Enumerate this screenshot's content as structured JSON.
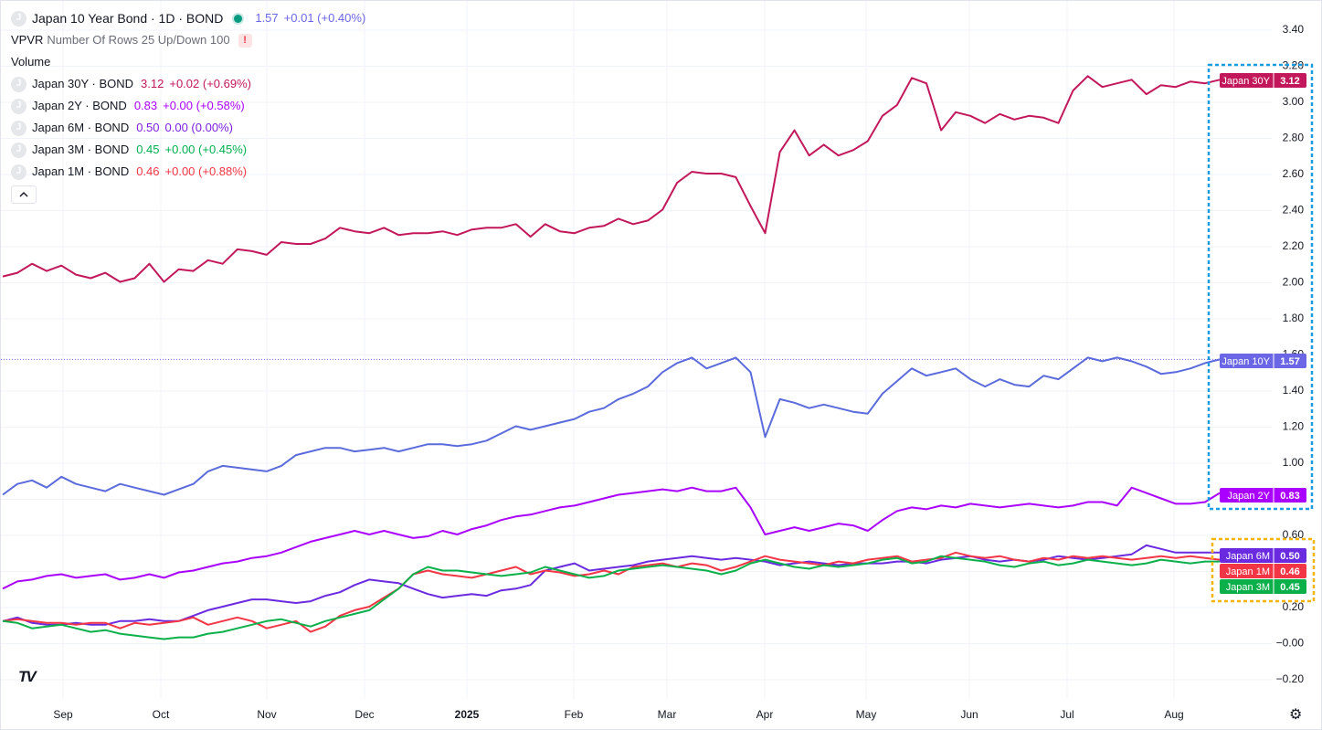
{
  "legend": {
    "main": {
      "title": "Japan 10 Year Bond · 1D · BOND",
      "value": "1.57",
      "change": "+0.01 (+0.40%)",
      "color": "#6b66e6"
    },
    "vpvr": {
      "label": "VPVR",
      "params": "Number Of Rows 25 Up/Down 100",
      "alert": "!"
    },
    "volume": "Volume",
    "items": [
      {
        "name": "Japan 30Y · BOND",
        "value": "3.12",
        "change": "+0.02 (+0.69%)",
        "color": "#c2185b"
      },
      {
        "name": "Japan 2Y · BOND",
        "value": "0.83",
        "change": "+0.00 (+0.58%)",
        "color": "#aa00ff"
      },
      {
        "name": "Japan 6M · BOND",
        "value": "0.50",
        "change": "0.00 (0.00%)",
        "color": "#7b1fe0"
      },
      {
        "name": "Japan 3M · BOND",
        "value": "0.45",
        "change": "+0.00 (+0.45%)",
        "color": "#00b050"
      },
      {
        "name": "Japan 1M · BOND",
        "value": "0.46",
        "change": "+0.00 (+0.88%)",
        "color": "#f23645"
      }
    ],
    "symbol_letter": "J",
    "collapse_icon": "chevron-up-icon"
  },
  "logo_text": "TV",
  "settings_icon": "gear-icon",
  "chart_data": {
    "type": "line",
    "x_labels": [
      "Sep",
      "Oct",
      "Nov",
      "Dec",
      "2025",
      "Feb",
      "Mar",
      "Apr",
      "May",
      "Jun",
      "Jul",
      "Aug"
    ],
    "y_ticks": [
      "3.40",
      "3.20",
      "3.00",
      "2.80",
      "2.60",
      "2.40",
      "2.20",
      "2.00",
      "1.80",
      "1.60",
      "1.40",
      "1.20",
      "1.00",
      "0.80",
      "0.60",
      "0.40",
      "0.20",
      "−0.00",
      "−0.20"
    ],
    "ylim": [
      -0.25,
      3.45
    ],
    "series": [
      {
        "name": "Japan 30Y",
        "color": "#c2185b",
        "last": "3.12",
        "label_color": "#c2185b",
        "values": [
          2.03,
          2.05,
          2.1,
          2.06,
          2.09,
          2.04,
          2.02,
          2.05,
          2.0,
          2.02,
          2.1,
          2.0,
          2.07,
          2.06,
          2.12,
          2.1,
          2.18,
          2.17,
          2.15,
          2.22,
          2.21,
          2.21,
          2.24,
          2.3,
          2.28,
          2.27,
          2.3,
          2.26,
          2.27,
          2.27,
          2.28,
          2.26,
          2.29,
          2.3,
          2.3,
          2.32,
          2.25,
          2.32,
          2.28,
          2.27,
          2.3,
          2.31,
          2.35,
          2.32,
          2.34,
          2.4,
          2.55,
          2.61,
          2.6,
          2.6,
          2.58,
          2.42,
          2.27,
          2.72,
          2.84,
          2.7,
          2.76,
          2.7,
          2.73,
          2.78,
          2.92,
          2.98,
          3.13,
          3.1,
          2.84,
          2.94,
          2.92,
          2.88,
          2.93,
          2.9,
          2.92,
          2.91,
          2.88,
          3.06,
          3.14,
          3.08,
          3.1,
          3.12,
          3.04,
          3.09,
          3.08,
          3.11,
          3.1,
          3.12
        ]
      },
      {
        "name": "Japan 10Y",
        "color": "#5b6bdc",
        "last": "1.57",
        "label_color": "#6b66e6",
        "values": [
          0.82,
          0.88,
          0.9,
          0.86,
          0.92,
          0.88,
          0.86,
          0.84,
          0.88,
          0.86,
          0.84,
          0.82,
          0.85,
          0.88,
          0.95,
          0.98,
          0.97,
          0.96,
          0.95,
          0.98,
          1.04,
          1.06,
          1.08,
          1.08,
          1.06,
          1.07,
          1.08,
          1.06,
          1.08,
          1.1,
          1.1,
          1.09,
          1.1,
          1.12,
          1.16,
          1.2,
          1.18,
          1.2,
          1.22,
          1.24,
          1.28,
          1.3,
          1.35,
          1.38,
          1.42,
          1.5,
          1.55,
          1.58,
          1.52,
          1.55,
          1.58,
          1.5,
          1.14,
          1.35,
          1.33,
          1.3,
          1.32,
          1.3,
          1.28,
          1.27,
          1.38,
          1.45,
          1.52,
          1.48,
          1.5,
          1.52,
          1.46,
          1.42,
          1.46,
          1.43,
          1.42,
          1.48,
          1.46,
          1.52,
          1.58,
          1.56,
          1.58,
          1.56,
          1.53,
          1.49,
          1.5,
          1.52,
          1.55,
          1.57
        ]
      },
      {
        "name": "Japan 2Y",
        "color": "#aa00ff",
        "last": "0.83",
        "label_color": "#aa00ff",
        "values": [
          0.3,
          0.34,
          0.35,
          0.37,
          0.38,
          0.36,
          0.37,
          0.38,
          0.35,
          0.36,
          0.38,
          0.36,
          0.39,
          0.4,
          0.42,
          0.44,
          0.45,
          0.47,
          0.48,
          0.5,
          0.53,
          0.56,
          0.58,
          0.6,
          0.62,
          0.6,
          0.62,
          0.6,
          0.58,
          0.59,
          0.62,
          0.6,
          0.63,
          0.65,
          0.68,
          0.7,
          0.71,
          0.73,
          0.75,
          0.76,
          0.78,
          0.8,
          0.82,
          0.83,
          0.84,
          0.85,
          0.84,
          0.86,
          0.84,
          0.84,
          0.86,
          0.75,
          0.6,
          0.62,
          0.64,
          0.62,
          0.64,
          0.66,
          0.65,
          0.62,
          0.68,
          0.73,
          0.75,
          0.74,
          0.76,
          0.75,
          0.77,
          0.76,
          0.75,
          0.76,
          0.77,
          0.76,
          0.75,
          0.76,
          0.78,
          0.78,
          0.76,
          0.86,
          0.83,
          0.8,
          0.77,
          0.77,
          0.78,
          0.83
        ]
      },
      {
        "name": "Japan 6M",
        "color": "#6a2be0",
        "last": "0.50",
        "label_color": "#6a2be0",
        "values": [
          0.12,
          0.14,
          0.11,
          0.1,
          0.1,
          0.11,
          0.1,
          0.1,
          0.12,
          0.12,
          0.13,
          0.12,
          0.12,
          0.15,
          0.18,
          0.2,
          0.22,
          0.24,
          0.24,
          0.23,
          0.22,
          0.23,
          0.26,
          0.28,
          0.32,
          0.35,
          0.34,
          0.33,
          0.3,
          0.27,
          0.25,
          0.26,
          0.27,
          0.26,
          0.29,
          0.3,
          0.32,
          0.4,
          0.42,
          0.44,
          0.4,
          0.41,
          0.42,
          0.43,
          0.45,
          0.46,
          0.47,
          0.48,
          0.47,
          0.46,
          0.47,
          0.46,
          0.45,
          0.43,
          0.44,
          0.45,
          0.44,
          0.43,
          0.44,
          0.44,
          0.44,
          0.45,
          0.45,
          0.44,
          0.46,
          0.47,
          0.48,
          0.46,
          0.45,
          0.46,
          0.45,
          0.46,
          0.48,
          0.47,
          0.46,
          0.47,
          0.48,
          0.49,
          0.54,
          0.52,
          0.5,
          0.5,
          0.5,
          0.5
        ]
      },
      {
        "name": "Japan 1M",
        "color": "#f23645",
        "last": "0.46",
        "label_color": "#f23645",
        "values": [
          0.12,
          0.13,
          0.12,
          0.11,
          0.11,
          0.1,
          0.11,
          0.11,
          0.08,
          0.11,
          0.1,
          0.11,
          0.12,
          0.14,
          0.1,
          0.12,
          0.14,
          0.12,
          0.08,
          0.1,
          0.12,
          0.06,
          0.09,
          0.15,
          0.18,
          0.2,
          0.25,
          0.3,
          0.38,
          0.4,
          0.38,
          0.37,
          0.36,
          0.38,
          0.4,
          0.42,
          0.38,
          0.4,
          0.39,
          0.37,
          0.38,
          0.4,
          0.38,
          0.42,
          0.43,
          0.44,
          0.42,
          0.44,
          0.43,
          0.4,
          0.42,
          0.45,
          0.48,
          0.46,
          0.45,
          0.44,
          0.43,
          0.45,
          0.44,
          0.46,
          0.47,
          0.48,
          0.45,
          0.46,
          0.47,
          0.5,
          0.48,
          0.47,
          0.48,
          0.46,
          0.45,
          0.47,
          0.46,
          0.48,
          0.47,
          0.48,
          0.47,
          0.46,
          0.47,
          0.48,
          0.47,
          0.48,
          0.47,
          0.46
        ]
      },
      {
        "name": "Japan 3M",
        "color": "#0bb04b",
        "last": "0.45",
        "label_color": "#0bb04b",
        "values": [
          0.12,
          0.11,
          0.08,
          0.09,
          0.1,
          0.08,
          0.06,
          0.07,
          0.05,
          0.04,
          0.03,
          0.02,
          0.03,
          0.03,
          0.05,
          0.06,
          0.08,
          0.1,
          0.12,
          0.13,
          0.11,
          0.09,
          0.12,
          0.14,
          0.16,
          0.18,
          0.24,
          0.3,
          0.38,
          0.42,
          0.4,
          0.4,
          0.39,
          0.38,
          0.37,
          0.38,
          0.39,
          0.42,
          0.4,
          0.38,
          0.36,
          0.37,
          0.4,
          0.41,
          0.42,
          0.43,
          0.42,
          0.41,
          0.4,
          0.38,
          0.4,
          0.44,
          0.46,
          0.44,
          0.42,
          0.41,
          0.43,
          0.42,
          0.43,
          0.44,
          0.46,
          0.47,
          0.44,
          0.45,
          0.48,
          0.47,
          0.46,
          0.45,
          0.43,
          0.42,
          0.44,
          0.45,
          0.43,
          0.44,
          0.46,
          0.45,
          0.44,
          0.43,
          0.44,
          0.46,
          0.45,
          0.44,
          0.45,
          0.45
        ]
      }
    ]
  }
}
